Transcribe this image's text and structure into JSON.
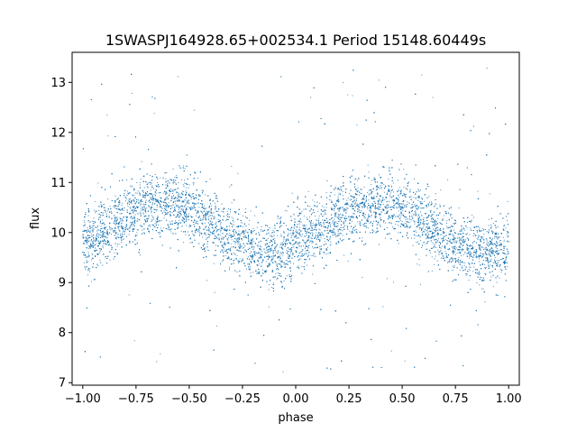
{
  "chart_data": {
    "type": "scatter",
    "title": "1SWASPJ164928.65+002534.1 Period 15148.60449s",
    "xlabel": "phase",
    "ylabel": "flux",
    "xlim": [
      -1.05,
      1.05
    ],
    "ylim": [
      6.95,
      13.6
    ],
    "xticks": [
      -1.0,
      -0.75,
      -0.5,
      -0.25,
      0.0,
      0.25,
      0.5,
      0.75,
      1.0
    ],
    "xtick_labels": [
      "−1.00",
      "−0.75",
      "−0.50",
      "−0.25",
      "0.00",
      "0.25",
      "0.50",
      "0.75",
      "1.00"
    ],
    "yticks": [
      7,
      8,
      9,
      10,
      11,
      12,
      13
    ],
    "ytick_labels": [
      "7",
      "8",
      "9",
      "10",
      "11",
      "12",
      "13"
    ],
    "grid": false,
    "series": [
      {
        "color": "#1f77b4",
        "marker_size": 1,
        "points_description_model": "sinusoidal light curve repeated over two cycles",
        "curve": {
          "mean_flux": 10.1,
          "semi_amplitude": 0.5,
          "peak_phases": [
            -0.62,
            0.38
          ],
          "trough_phases": [
            -0.12,
            0.88
          ],
          "scatter_sigma": 0.32
        },
        "sample_points": [
          {
            "x": -1.0,
            "y": 9.8
          },
          {
            "x": -0.875,
            "y": 10.15
          },
          {
            "x": -0.75,
            "y": 10.45
          },
          {
            "x": -0.625,
            "y": 10.6
          },
          {
            "x": -0.5,
            "y": 10.5
          },
          {
            "x": -0.375,
            "y": 10.2
          },
          {
            "x": -0.25,
            "y": 9.9
          },
          {
            "x": -0.125,
            "y": 9.6
          },
          {
            "x": 0.0,
            "y": 9.75
          },
          {
            "x": 0.125,
            "y": 10.1
          },
          {
            "x": 0.25,
            "y": 10.4
          },
          {
            "x": 0.375,
            "y": 10.6
          },
          {
            "x": 0.5,
            "y": 10.5
          },
          {
            "x": 0.625,
            "y": 10.25
          },
          {
            "x": 0.75,
            "y": 9.95
          },
          {
            "x": 0.875,
            "y": 9.6
          },
          {
            "x": 1.0,
            "y": 9.75
          }
        ],
        "outlier_range": [
          7.2,
          13.3
        ],
        "n_points_approx": 12000
      }
    ]
  }
}
